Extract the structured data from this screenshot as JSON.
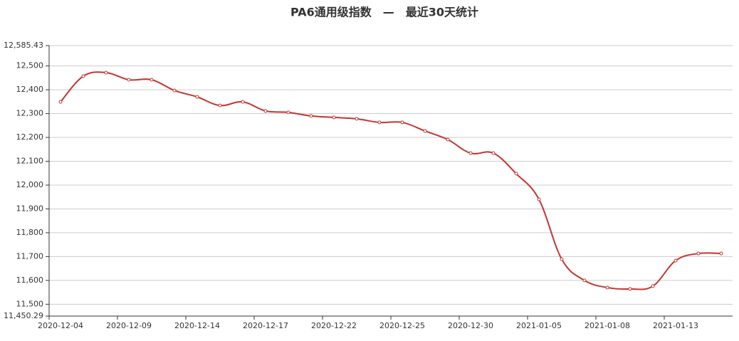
{
  "chart_data": {
    "type": "line",
    "title": "PA6通用级指数　—　最近30天统计",
    "categories": [
      "2020-12-04",
      null,
      null,
      "2020-12-09",
      null,
      null,
      "2020-12-14",
      null,
      null,
      "2020-12-17",
      null,
      null,
      "2020-12-22",
      null,
      null,
      "2020-12-25",
      null,
      null,
      "2020-12-30",
      null,
      null,
      "2021-01-05",
      null,
      null,
      "2021-01-08",
      null,
      null,
      "2021-01-13",
      null,
      null
    ],
    "series": [
      {
        "color": "#c23531",
        "values": [
          12349,
          12457,
          12472,
          12442,
          12442,
          12397,
          12370,
          12334,
          12349,
          12311,
          12305,
          12290,
          12284,
          12278,
          12263,
          12263,
          12227,
          12191,
          12134,
          12134,
          12048,
          11940,
          11689,
          11600,
          11570,
          11564,
          11576,
          11683,
          11713,
          11713
        ]
      }
    ],
    "ylim": [
      11450.29,
      12585.43
    ],
    "yticks": [
      {
        "value": 11450.29,
        "label": "11,450.29"
      },
      {
        "value": 11500,
        "label": "11,500"
      },
      {
        "value": 11600,
        "label": "11,600"
      },
      {
        "value": 11700,
        "label": "11,700"
      },
      {
        "value": 11800,
        "label": "11,800"
      },
      {
        "value": 11900,
        "label": "11,900"
      },
      {
        "value": 12000,
        "label": "12,000"
      },
      {
        "value": 12100,
        "label": "12,100"
      },
      {
        "value": 12200,
        "label": "12,200"
      },
      {
        "value": 12300,
        "label": "12,300"
      },
      {
        "value": 12400,
        "label": "12,400"
      },
      {
        "value": 12500,
        "label": "12,500"
      },
      {
        "value": 12585.43,
        "label": "12,585.43"
      }
    ],
    "grid": true
  }
}
